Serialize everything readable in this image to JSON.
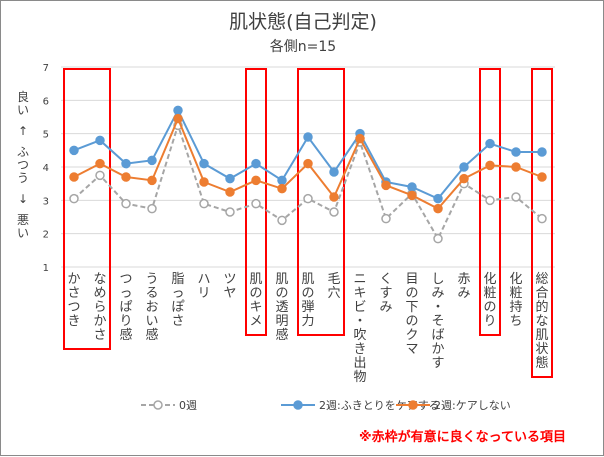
{
  "chart_data": {
    "type": "line",
    "title": "肌状態(自己判定)",
    "subtitle": "各側n=15",
    "ylabel": [
      "良い",
      "↑",
      "ふつう",
      "↓",
      "悪い"
    ],
    "ylim": [
      1,
      7
    ],
    "yticks": [
      1,
      2,
      3,
      4,
      5,
      6,
      7
    ],
    "grid": true,
    "legend_position": "bottom",
    "categories": [
      "かさつき",
      "なめらかさ",
      "つっぱり感",
      "うるおい感",
      "脂っぽさ",
      "ハリ",
      "ツヤ",
      "肌のキメ",
      "肌の透明感",
      "肌の弾力",
      "毛穴",
      "ニキビ・吹き出物",
      "くすみ",
      "目の下のクマ",
      "しみ・そばかす",
      "赤み",
      "化粧のり",
      "化粧持ち",
      "総合的な肌状態"
    ],
    "series": [
      {
        "name": "0週",
        "color": "#a6a6a6",
        "dashed": true,
        "values": [
          3.05,
          3.75,
          2.9,
          2.75,
          5.25,
          2.9,
          2.65,
          2.9,
          2.4,
          3.05,
          2.65,
          4.75,
          2.45,
          3.2,
          1.85,
          3.5,
          3.0,
          3.1,
          2.45
        ]
      },
      {
        "name": "2週:ふきとりをケアする",
        "color": "#5b9bd5",
        "dashed": false,
        "values": [
          4.5,
          4.8,
          4.1,
          4.2,
          5.7,
          4.1,
          3.65,
          4.1,
          3.6,
          4.9,
          3.85,
          5.0,
          3.55,
          3.4,
          3.05,
          4.0,
          4.7,
          4.45,
          4.45
        ]
      },
      {
        "name": "2週:ケアしない",
        "color": "#ed7d31",
        "dashed": false,
        "values": [
          3.7,
          4.1,
          3.7,
          3.6,
          5.45,
          3.55,
          3.25,
          3.6,
          3.35,
          4.1,
          3.1,
          4.85,
          3.45,
          3.15,
          2.75,
          3.65,
          4.05,
          4.0,
          3.7
        ]
      }
    ],
    "highlighted_categories": [
      [
        0,
        1
      ],
      [
        7
      ],
      [
        9,
        10
      ],
      [
        16
      ],
      [
        18
      ]
    ],
    "note": "※赤枠が有意に良くなっている項目"
  }
}
